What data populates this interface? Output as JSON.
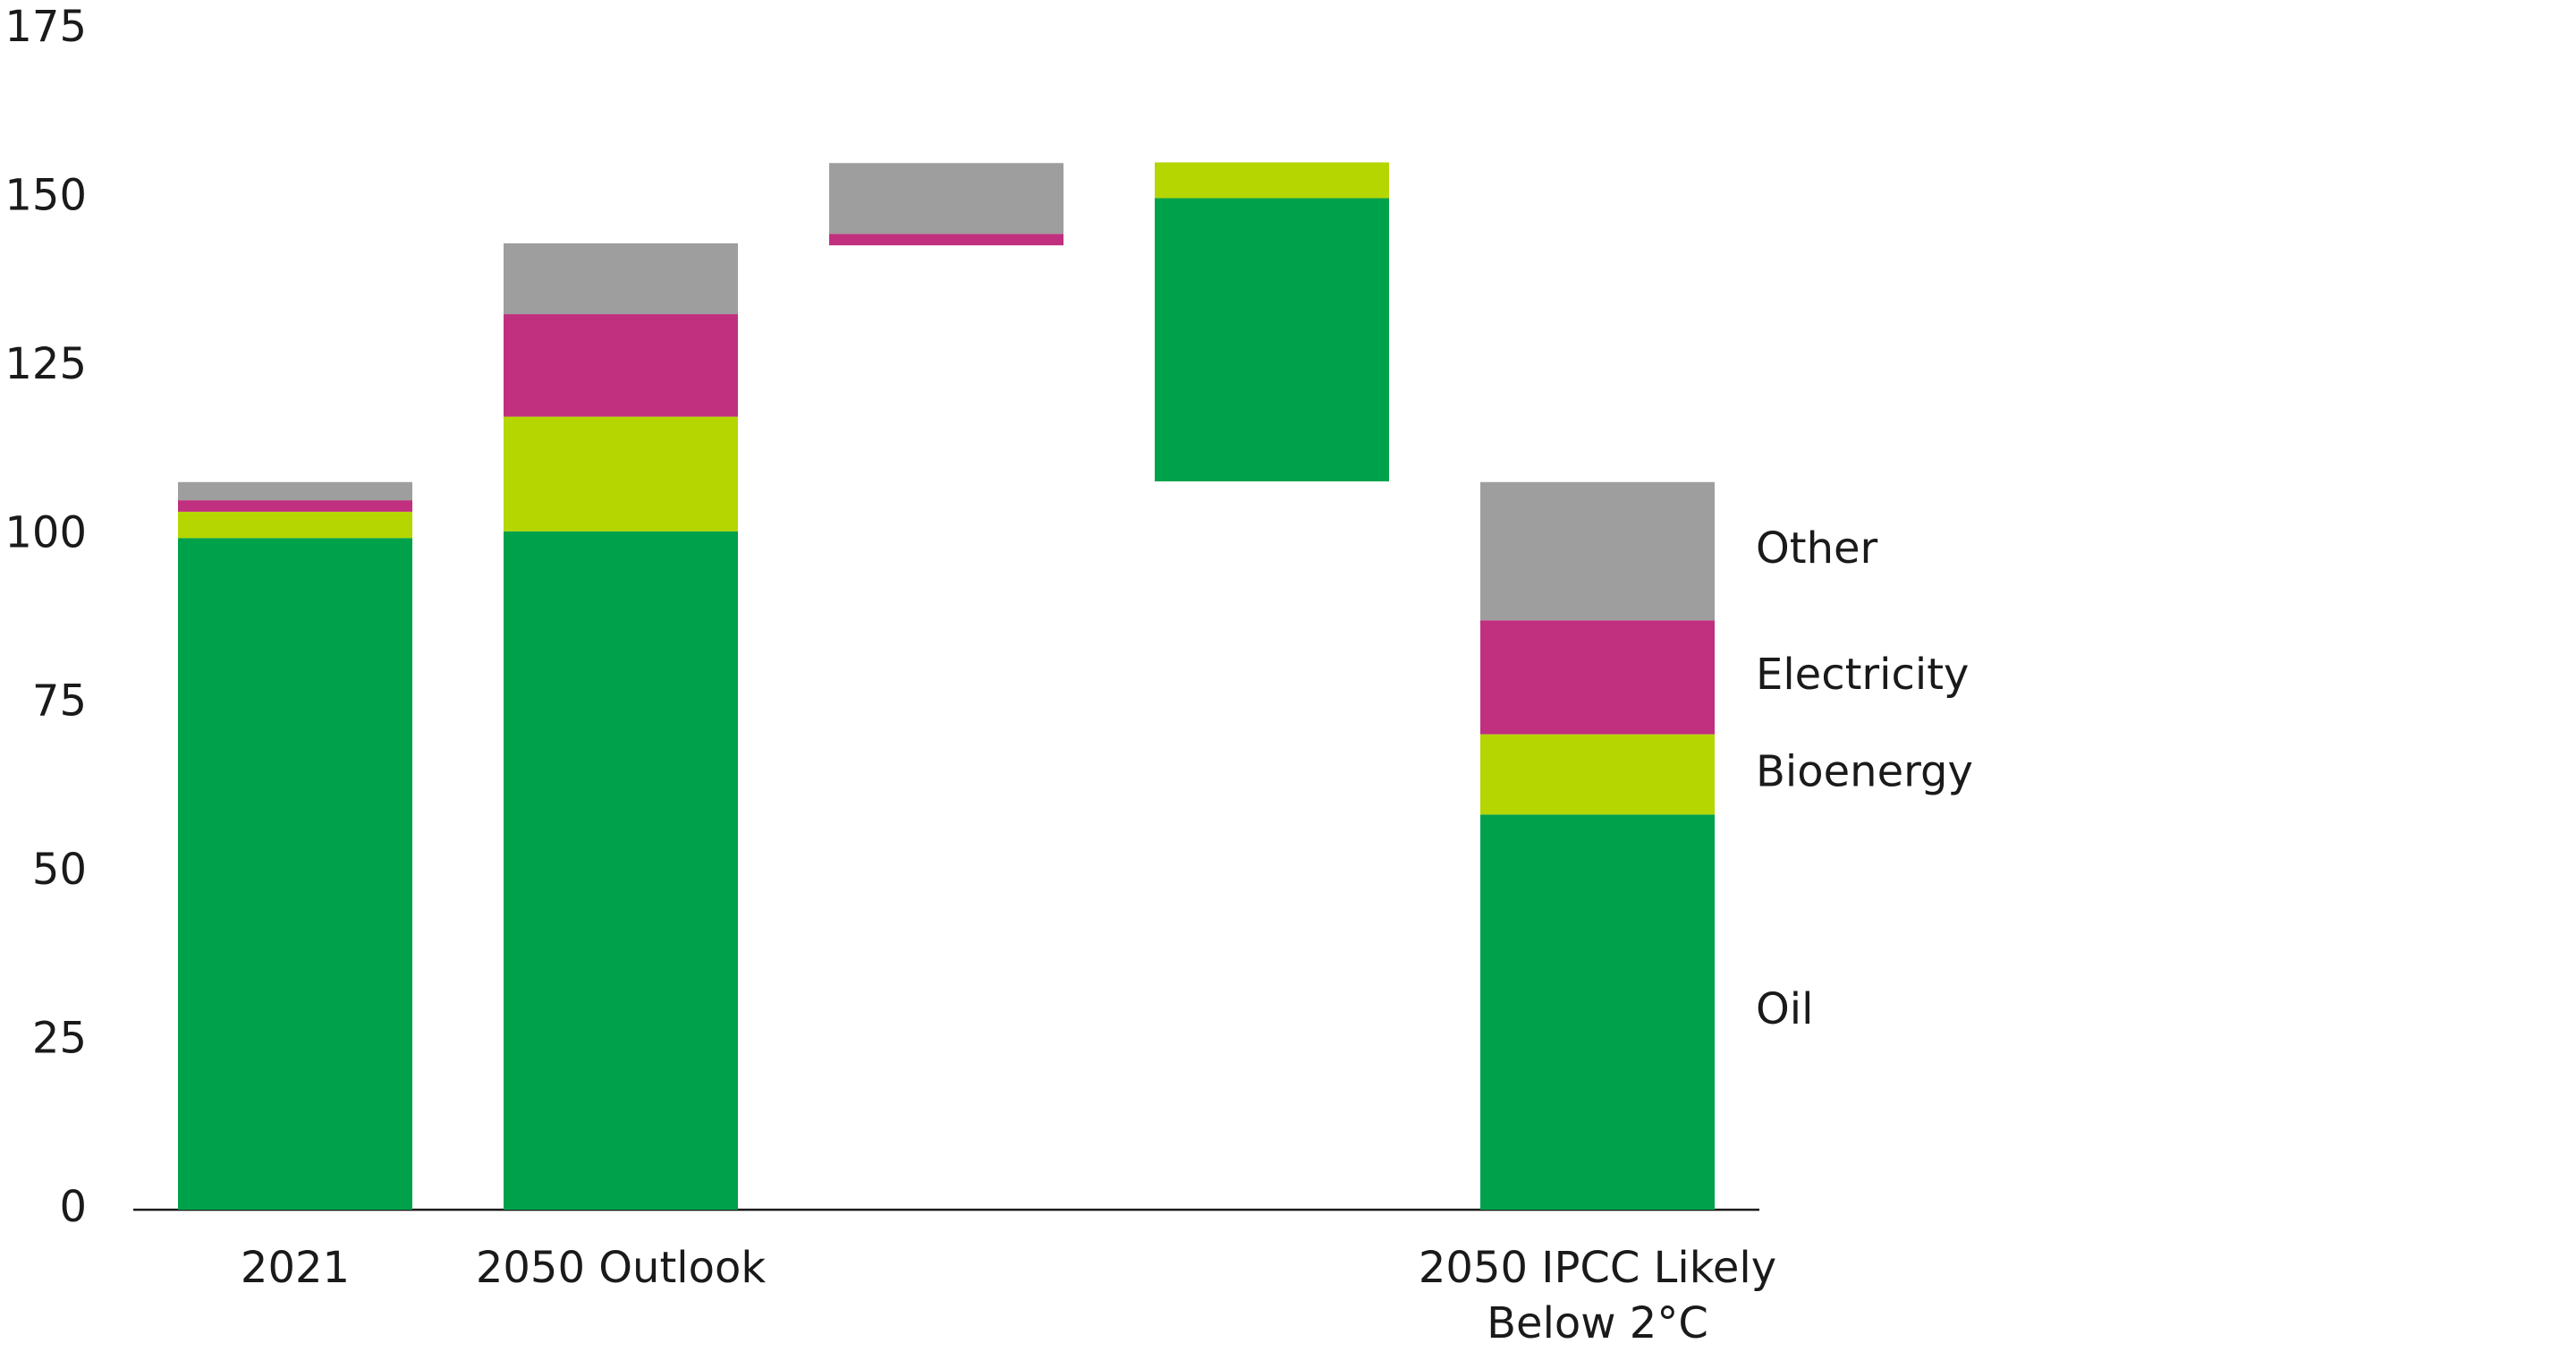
{
  "chart_data": {
    "type": "floating-stacked-bar",
    "categories": [
      "2021",
      "2050 Outlook",
      null,
      null,
      "2050 IPCC Likely\nBelow 2°C"
    ],
    "bases": [
      0,
      0,
      143,
      108,
      0
    ],
    "series": [
      {
        "name": "Oil",
        "color": "#00a14b",
        "values": [
          99.6,
          100.6,
          0,
          42,
          58.6
        ]
      },
      {
        "name": "Bioenergy",
        "color": "#b5d600",
        "values": [
          3.9,
          17,
          0,
          5.3,
          11.9
        ]
      },
      {
        "name": "Electricity",
        "color": "#c0307e",
        "values": [
          1.7,
          15.2,
          1.7,
          0,
          16.9
        ]
      },
      {
        "name": "Other",
        "color": "#9e9e9e",
        "values": [
          2.7,
          10.5,
          10.5,
          0,
          20.5
        ]
      }
    ],
    "ylim": [
      0,
      175
    ],
    "yticks": [
      0,
      25,
      50,
      75,
      100,
      125,
      150,
      175
    ]
  }
}
